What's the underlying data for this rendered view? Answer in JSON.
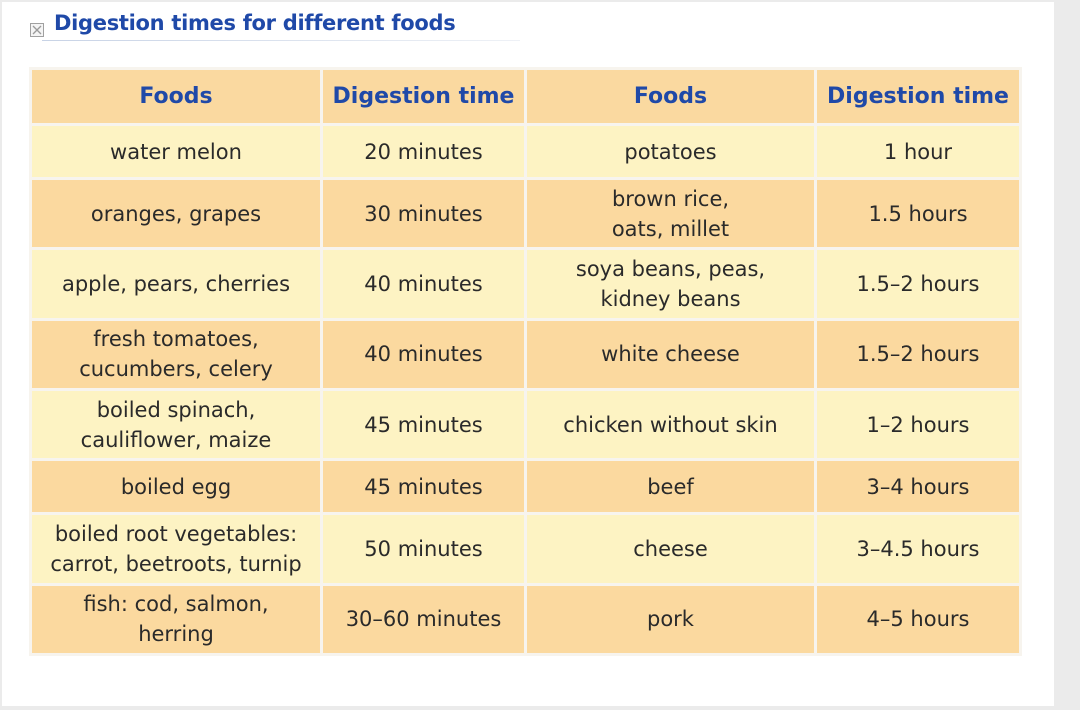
{
  "title": "Digestion times for different foods",
  "colors": {
    "title": "#1f49a8",
    "header_bg": "#fad9a0",
    "row_dark": "#fbd99f",
    "row_light": "#fdf3c3",
    "border": "#6e87c0"
  },
  "table": {
    "headers": [
      "Foods",
      "Digestion time",
      "Foods",
      "Digestion time"
    ],
    "rows": [
      [
        "water melon",
        "20 minutes",
        "potatoes",
        "1 hour"
      ],
      [
        "oranges, grapes",
        "30 minutes",
        "brown rice,\noats, millet",
        "1.5 hours"
      ],
      [
        "apple, pears, cherries",
        "40 minutes",
        "soya beans, peas,\nkidney beans",
        "1.5–2 hours"
      ],
      [
        "fresh tomatoes,\ncucumbers, celery",
        "40 minutes",
        "white cheese",
        "1.5–2 hours"
      ],
      [
        "boiled spinach,\ncauliflower, maize",
        "45 minutes",
        "chicken without skin",
        "1–2 hours"
      ],
      [
        "boiled egg",
        "45 minutes",
        "beef",
        "3–4 hours"
      ],
      [
        "boiled root vegetables:\ncarrot, beetroots, turnip",
        "50 minutes",
        "cheese",
        "3–4.5 hours"
      ],
      [
        "fish: cod, salmon,\nherring",
        "30–60 minutes",
        "pork",
        "4–5 hours"
      ]
    ]
  }
}
